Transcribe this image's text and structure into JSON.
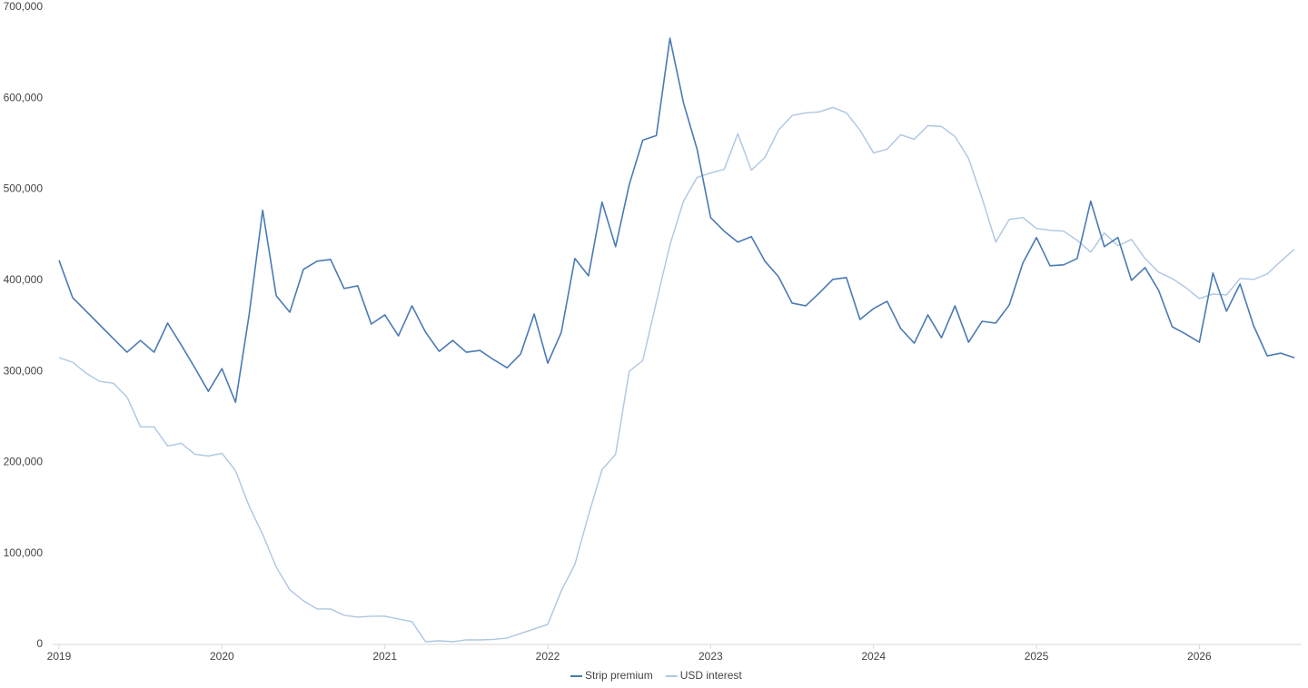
{
  "chart_data": {
    "type": "line",
    "categories": [
      "2019",
      null,
      null,
      null,
      null,
      null,
      null,
      null,
      null,
      null,
      null,
      null,
      "2020",
      null,
      null,
      null,
      null,
      null,
      null,
      null,
      null,
      null,
      null,
      null,
      "2021",
      null,
      null,
      null,
      null,
      null,
      null,
      null,
      null,
      null,
      null,
      null,
      "2022",
      null,
      null,
      null,
      null,
      null,
      null,
      null,
      null,
      null,
      null,
      null,
      "2023",
      null,
      null,
      null,
      null,
      null,
      null,
      null,
      null,
      null,
      null,
      null,
      "2024",
      null,
      null,
      null,
      null,
      null,
      null,
      null,
      null,
      null,
      null,
      null,
      "2025",
      null,
      null,
      null,
      null,
      null,
      null,
      null,
      null,
      null,
      null,
      null,
      "2026",
      null,
      null,
      null,
      null,
      null,
      null,
      null
    ],
    "series": [
      {
        "name": "Strip premium",
        "color": "#4a7ab5",
        "values": [
          422000,
          381000,
          366000,
          351000,
          336000,
          321000,
          334000,
          321000,
          353000,
          329000,
          304000,
          278000,
          303000,
          266000,
          362000,
          477000,
          383000,
          365000,
          412000,
          421000,
          423000,
          391000,
          394000,
          352000,
          362000,
          339000,
          372000,
          343000,
          322000,
          334000,
          321000,
          323000,
          313000,
          304000,
          319000,
          363000,
          309000,
          343000,
          424000,
          405000,
          486000,
          437000,
          505000,
          554000,
          559000,
          666000,
          595000,
          544000,
          469000,
          454000,
          442000,
          448000,
          421000,
          404000,
          375000,
          372000,
          386000,
          401000,
          403000,
          357000,
          369000,
          377000,
          347000,
          331000,
          362000,
          337000,
          372000,
          332000,
          355000,
          353000,
          373000,
          419000,
          447000,
          416000,
          417000,
          424000,
          487000,
          437000,
          447000,
          400000,
          414000,
          389000,
          349000,
          341000,
          332000,
          408000,
          366000,
          396000,
          350000,
          317000,
          320000,
          315000
        ]
      },
      {
        "name": "USD interest",
        "color": "#adc6e2",
        "values": [
          315000,
          310000,
          298000,
          289000,
          287000,
          272000,
          239000,
          239000,
          218000,
          221000,
          209000,
          207000,
          210000,
          191000,
          152000,
          121000,
          85000,
          60000,
          48000,
          39000,
          39000,
          32000,
          30000,
          31000,
          31000,
          28000,
          25000,
          3000,
          4000,
          3000,
          5000,
          5000,
          5500,
          7000,
          12000,
          17000,
          22000,
          59000,
          88000,
          142000,
          192000,
          209000,
          300000,
          312000,
          376000,
          439000,
          487000,
          513000,
          518000,
          522000,
          561000,
          521000,
          535000,
          565000,
          581000,
          584000,
          585000,
          590000,
          584000,
          565000,
          540000,
          544000,
          560000,
          555000,
          570000,
          569000,
          558000,
          534000,
          490000,
          442000,
          467000,
          469000,
          457000,
          455000,
          454000,
          444000,
          431000,
          452000,
          438000,
          445000,
          424000,
          409000,
          402000,
          392000,
          380000,
          385000,
          384000,
          402000,
          401000,
          407000,
          421000,
          434000
        ]
      }
    ],
    "ylim": [
      0,
      700000
    ],
    "yticks": [
      0,
      {
        "value": 100000,
        "label": "100,000"
      },
      {
        "value": 200000,
        "label": "200,000"
      },
      {
        "value": 300000,
        "label": "300,000"
      },
      {
        "value": 400000,
        "label": "400,000"
      },
      {
        "value": 500000,
        "label": "500,000"
      },
      {
        "value": 600000,
        "label": "600,000"
      },
      {
        "value": 700000,
        "label": "700,000"
      }
    ],
    "grid": false,
    "legend": "bottom"
  }
}
